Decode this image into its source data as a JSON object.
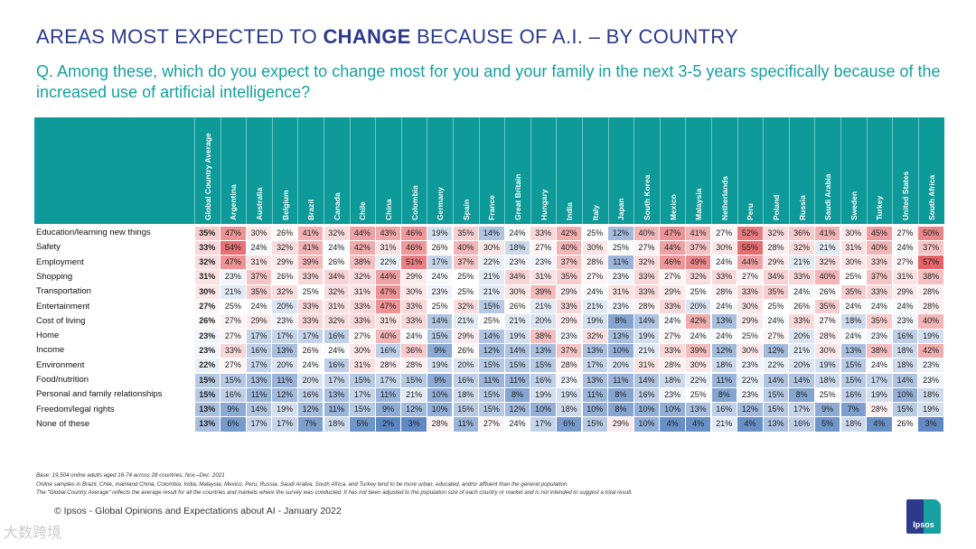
{
  "header": {
    "title_pre": "AREAS MOST EXPECTED TO ",
    "title_bold": "CHANGE",
    "title_post": " BECAUSE OF A.I. – BY COUNTRY",
    "question": "Q. Among these, which do you expect to change most for you and your family in the next 3-5 years specifically because of the increased use of artificial intelligence?"
  },
  "chart_data": {
    "type": "heatmap",
    "unit": "%",
    "columns": [
      "Global Country Average",
      "Argentina",
      "Australia",
      "Belgium",
      "Brazil",
      "Canada",
      "Chile",
      "China",
      "Colombia",
      "Germany",
      "Spain",
      "France",
      "Great Britain",
      "Hungary",
      "India",
      "Italy",
      "Japan",
      "South Korea",
      "Mexico",
      "Malaysia",
      "Netherlands",
      "Peru",
      "Poland",
      "Russia",
      "Saudi Arabia",
      "Sweden",
      "Turkey",
      "United States",
      "South Africa"
    ],
    "rows": [
      {
        "label": "Education/learning new things",
        "values": [
          35,
          47,
          30,
          26,
          41,
          32,
          44,
          43,
          46,
          19,
          35,
          14,
          24,
          33,
          42,
          25,
          12,
          40,
          47,
          41,
          27,
          52,
          32,
          36,
          41,
          30,
          45,
          27,
          50
        ]
      },
      {
        "label": "Safety",
        "values": [
          33,
          54,
          24,
          32,
          41,
          24,
          42,
          31,
          46,
          26,
          40,
          30,
          18,
          27,
          40,
          30,
          25,
          27,
          44,
          37,
          30,
          55,
          28,
          32,
          21,
          31,
          40,
          24,
          37
        ]
      },
      {
        "label": "Employment",
        "values": [
          32,
          47,
          31,
          29,
          39,
          26,
          38,
          22,
          51,
          17,
          37,
          22,
          23,
          23,
          37,
          28,
          11,
          32,
          46,
          49,
          24,
          44,
          29,
          21,
          32,
          30,
          33,
          27,
          57
        ]
      },
      {
        "label": "Shopping",
        "values": [
          31,
          23,
          37,
          26,
          33,
          34,
          32,
          44,
          29,
          24,
          25,
          21,
          34,
          31,
          35,
          27,
          23,
          33,
          27,
          32,
          33,
          27,
          34,
          33,
          40,
          25,
          37,
          31,
          38
        ]
      },
      {
        "label": "Transportation",
        "values": [
          30,
          21,
          35,
          32,
          25,
          32,
          31,
          47,
          30,
          23,
          25,
          21,
          30,
          39,
          29,
          24,
          31,
          33,
          29,
          25,
          28,
          33,
          35,
          24,
          26,
          35,
          33,
          29,
          28
        ]
      },
      {
        "label": "Entertainment",
        "values": [
          27,
          25,
          24,
          20,
          33,
          31,
          33,
          47,
          33,
          25,
          32,
          15,
          26,
          21,
          33,
          21,
          23,
          28,
          33,
          20,
          24,
          30,
          25,
          26,
          35,
          24,
          24,
          24,
          28
        ]
      },
      {
        "label": "Cost of living",
        "values": [
          26,
          27,
          29,
          23,
          33,
          32,
          33,
          31,
          33,
          14,
          21,
          25,
          21,
          20,
          29,
          19,
          8,
          14,
          24,
          42,
          13,
          29,
          24,
          33,
          27,
          18,
          35,
          23,
          40
        ]
      },
      {
        "label": "Home",
        "values": [
          23,
          27,
          17,
          17,
          17,
          16,
          27,
          40,
          24,
          15,
          29,
          14,
          19,
          38,
          23,
          32,
          13,
          19,
          27,
          24,
          24,
          25,
          27,
          20,
          28,
          24,
          23,
          16,
          19
        ]
      },
      {
        "label": "Income",
        "values": [
          23,
          33,
          16,
          13,
          26,
          24,
          30,
          16,
          36,
          9,
          26,
          12,
          14,
          13,
          37,
          13,
          10,
          21,
          33,
          39,
          12,
          30,
          12,
          21,
          30,
          13,
          38,
          18,
          42
        ]
      },
      {
        "label": "Environment",
        "values": [
          22,
          27,
          17,
          20,
          24,
          16,
          31,
          28,
          28,
          19,
          20,
          15,
          15,
          15,
          28,
          17,
          20,
          31,
          28,
          30,
          18,
          23,
          22,
          20,
          19,
          15,
          24,
          18,
          23
        ]
      },
      {
        "label": "Food/nutrition",
        "values": [
          15,
          15,
          13,
          11,
          20,
          17,
          15,
          17,
          15,
          9,
          16,
          11,
          11,
          16,
          23,
          13,
          11,
          14,
          18,
          22,
          11,
          22,
          14,
          14,
          18,
          15,
          17,
          14,
          23
        ]
      },
      {
        "label": "Personal and family relationships",
        "values": [
          15,
          16,
          11,
          12,
          16,
          13,
          17,
          11,
          21,
          10,
          18,
          15,
          8,
          19,
          19,
          11,
          8,
          16,
          23,
          25,
          8,
          23,
          15,
          8,
          25,
          16,
          19,
          10,
          18
        ]
      },
      {
        "label": "Freedom/legal rights",
        "values": [
          13,
          9,
          14,
          19,
          12,
          11,
          15,
          9,
          12,
          10,
          15,
          15,
          12,
          10,
          18,
          10,
          8,
          10,
          10,
          13,
          16,
          12,
          15,
          17,
          9,
          7,
          28,
          15,
          19
        ]
      },
      {
        "label": "None of these",
        "values": [
          13,
          6,
          17,
          17,
          7,
          18,
          5,
          2,
          3,
          28,
          11,
          27,
          24,
          17,
          6,
          15,
          29,
          10,
          4,
          4,
          21,
          4,
          13,
          16,
          5,
          18,
          4,
          26,
          3
        ]
      }
    ],
    "colors": {
      "high": "#e0474c",
      "mid": "#ffffff",
      "low": "#3d6fb6",
      "header": "#0f9a9a"
    }
  },
  "footer": {
    "notes": [
      "Base: 19,504 online adults aged 16-74 across 28 countries, Nov.–Dec. 2021",
      "Online samples in Brazil, Chile, mainland China, Colombia, India, Malaysia, Mexico, Peru, Russia, Saudi Arabia, South Africa, and Turkey tend to be more urban, educated, and/or affluent than the general population.",
      "The \"Global  Country Average\" reflects the average result for all the countries and markets where the survey was conducted. It has not been adjusted to the population size of each country or market and is not intended to suggest a total result."
    ],
    "copyright": "© Ipsos - Global Opinions and Expectations about AI - January 2022",
    "logo": "Ipsos",
    "watermark": "大数跨境"
  }
}
